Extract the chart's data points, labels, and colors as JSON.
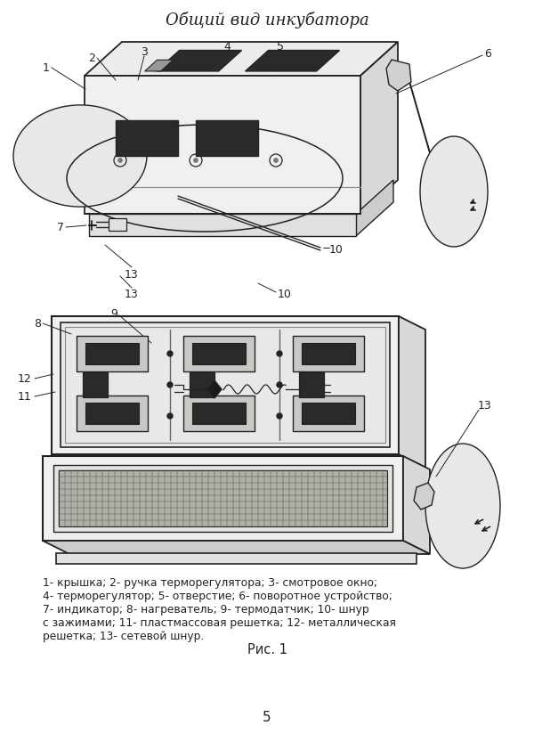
{
  "title": "Общий вид инкубатора",
  "bg_color": "#ffffff",
  "fig_color": "#ffffff",
  "caption_lines": [
    "1- крышка; 2- ручка терморегулятора; 3- смотровое окно;",
    "4- терморегулятор; 5- отверстие; 6- поворотное устройство;",
    "7- индикатор; 8- нагреватель; 9- термодатчик; 10- шнур",
    "с зажимами; 11- пластмассовая решетка; 12- металлическая",
    "решетка; 13- сетевой шнур."
  ],
  "fig_label": "Рис. 1",
  "page_num": "5"
}
